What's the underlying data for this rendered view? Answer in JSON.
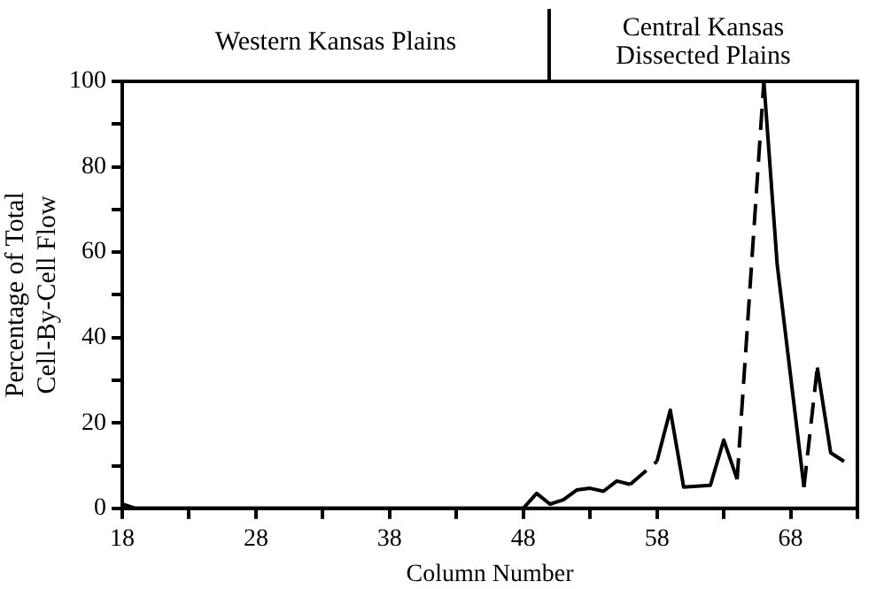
{
  "chart_data": {
    "type": "line",
    "xlabel": "Column Number",
    "ylabel": "Percentage of Total Cell-By-Cell Flow",
    "annotations": [
      "Western Kansas Plains",
      "Central Kansas Dissected Plains"
    ],
    "xlim": [
      18,
      73
    ],
    "xticks": [
      18,
      {
        "value": 23,
        "label": null
      },
      28,
      {
        "value": 33,
        "label": null
      },
      38,
      {
        "value": 43,
        "label": null
      },
      48,
      {
        "value": 53,
        "label": null
      },
      58,
      {
        "value": 63,
        "label": null
      },
      68,
      {
        "value": 73,
        "label": null
      }
    ],
    "ylim": [
      0,
      100
    ],
    "yticks": [
      0,
      {
        "value": 10,
        "label": null
      },
      20,
      {
        "value": 30,
        "label": null
      },
      40,
      {
        "value": 50,
        "label": null
      },
      60,
      {
        "value": 70,
        "label": null
      },
      80,
      {
        "value": 90,
        "label": null
      },
      100
    ],
    "grid": false,
    "legend": false,
    "marker": "none",
    "series": [
      {
        "color": "#000000",
        "line_style": "solid",
        "x": [
          18,
          19,
          48,
          49,
          50,
          51,
          52,
          53,
          54,
          55,
          56
        ],
        "values": [
          1,
          0,
          0,
          3.5,
          1,
          2,
          4.3,
          4.7,
          4,
          6.4,
          5.6
        ]
      },
      {
        "color": "#000000",
        "line_style": "dashed",
        "x": [
          56,
          58
        ],
        "values": [
          5.6,
          11
        ]
      },
      {
        "color": "#000000",
        "line_style": "solid",
        "x": [
          58,
          59,
          60,
          62,
          63,
          64
        ],
        "values": [
          11,
          23,
          5,
          5.4,
          16,
          6.8
        ]
      },
      {
        "color": "#000000",
        "line_style": "dashed",
        "x": [
          64,
          66
        ],
        "values": [
          6.8,
          100
        ]
      },
      {
        "color": "#000000",
        "line_style": "solid",
        "x": [
          66,
          67,
          69
        ],
        "values": [
          100,
          57,
          5
        ]
      },
      {
        "color": "#000000",
        "line_style": "dashed",
        "x": [
          69,
          70
        ],
        "values": [
          5,
          33
        ]
      },
      {
        "color": "#000000",
        "line_style": "solid",
        "x": [
          70,
          71,
          72
        ],
        "values": [
          33,
          13,
          11
        ]
      }
    ]
  }
}
